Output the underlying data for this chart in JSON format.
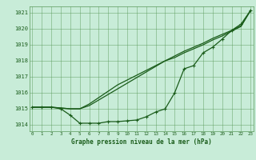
{
  "background_color": "#c8ecd8",
  "grid_color": "#5a9a5a",
  "line_color": "#1a5c1a",
  "title": "Graphe pression niveau de la mer (hPa)",
  "hours": [
    0,
    1,
    2,
    3,
    4,
    5,
    6,
    7,
    8,
    9,
    10,
    11,
    12,
    13,
    14,
    15,
    16,
    17,
    18,
    19,
    20,
    21,
    22,
    23
  ],
  "ylim": [
    1013.6,
    1021.4
  ],
  "yticks": [
    1014,
    1015,
    1016,
    1017,
    1018,
    1019,
    1020,
    1021
  ],
  "xlim": [
    -0.3,
    23.3
  ],
  "series_marker": [
    1015.1,
    1015.1,
    1015.1,
    1015.0,
    1014.6,
    1014.1,
    1014.1,
    1014.1,
    1014.2,
    1014.2,
    1014.25,
    1014.3,
    1014.5,
    1014.8,
    1015.0,
    1016.0,
    1017.5,
    1017.7,
    1018.5,
    1018.85,
    1019.35,
    1019.9,
    1020.3,
    1021.15
  ],
  "series_smooth1": [
    1015.1,
    1015.1,
    1015.1,
    1015.05,
    1015.0,
    1015.0,
    1015.2,
    1015.55,
    1015.9,
    1016.25,
    1016.6,
    1016.95,
    1017.3,
    1017.65,
    1018.0,
    1018.3,
    1018.6,
    1018.85,
    1019.1,
    1019.4,
    1019.65,
    1019.9,
    1020.2,
    1021.15
  ],
  "series_smooth2": [
    1015.1,
    1015.1,
    1015.1,
    1015.05,
    1015.0,
    1015.0,
    1015.3,
    1015.7,
    1016.1,
    1016.5,
    1016.8,
    1017.1,
    1017.4,
    1017.7,
    1018.0,
    1018.2,
    1018.5,
    1018.75,
    1019.0,
    1019.3,
    1019.55,
    1019.85,
    1020.15,
    1021.15
  ]
}
